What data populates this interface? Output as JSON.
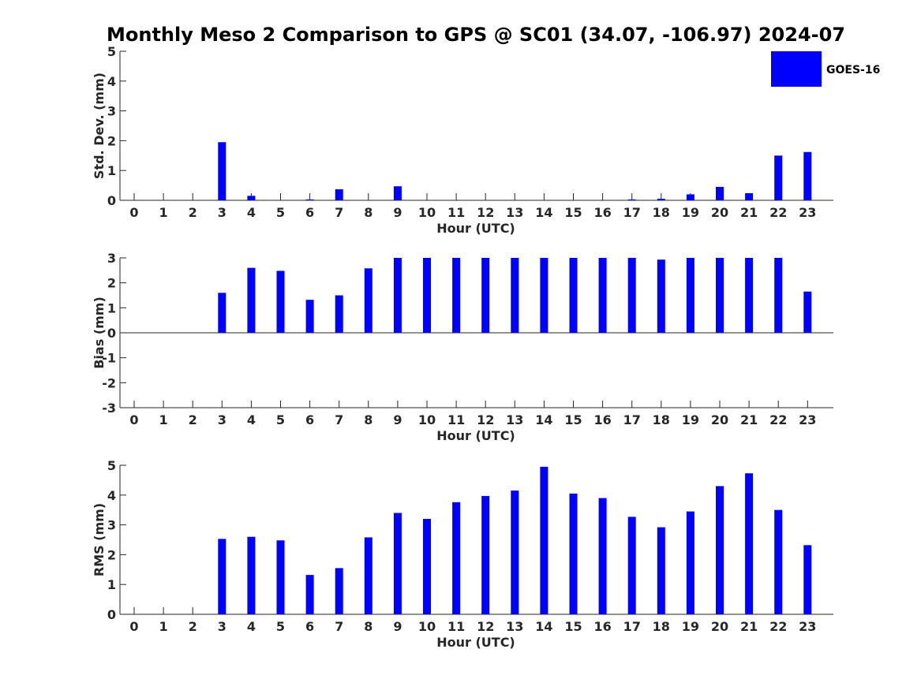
{
  "title": "Monthly Meso 2 Comparison to GPS @ SC01 (34.07, -106.97) 2024-07",
  "bar_color": "#0000ff",
  "legend": {
    "label": "GOES-16",
    "placement": "top-right"
  },
  "chart_data": [
    {
      "type": "bar",
      "panel": "std-dev",
      "ylabel": "Std. Dev. (mm)",
      "xlabel": "Hour (UTC)",
      "categories": [
        "0",
        "1",
        "2",
        "3",
        "4",
        "5",
        "6",
        "7",
        "8",
        "9",
        "10",
        "11",
        "12",
        "13",
        "14",
        "15",
        "16",
        "17",
        "18",
        "19",
        "20",
        "21",
        "22",
        "23"
      ],
      "yticks": [
        0,
        1,
        2,
        3,
        4,
        5
      ],
      "ylim": [
        0,
        5
      ],
      "series": [
        {
          "name": "GOES-16",
          "values": [
            0,
            0,
            0,
            1.95,
            0.15,
            0,
            0.03,
            0.37,
            0,
            0.47,
            0,
            0,
            0,
            0,
            0,
            0,
            0,
            0.03,
            0.05,
            0.2,
            0.45,
            0.24,
            1.5,
            1.62
          ]
        }
      ]
    },
    {
      "type": "bar",
      "panel": "bias",
      "ylabel": "Bias (mm)",
      "xlabel": "Hour (UTC)",
      "categories": [
        "0",
        "1",
        "2",
        "3",
        "4",
        "5",
        "6",
        "7",
        "8",
        "9",
        "10",
        "11",
        "12",
        "13",
        "14",
        "15",
        "16",
        "17",
        "18",
        "19",
        "20",
        "21",
        "22",
        "23"
      ],
      "yticks": [
        -3,
        -2,
        -1,
        0,
        1,
        2,
        3
      ],
      "ylim": [
        -3,
        3
      ],
      "series": [
        {
          "name": "GOES-16",
          "values": [
            0,
            0,
            0,
            1.6,
            2.6,
            2.48,
            1.32,
            1.5,
            2.58,
            3,
            3,
            3,
            3,
            3,
            3,
            3,
            3,
            3,
            2.93,
            3,
            3,
            3,
            3,
            1.65
          ]
        }
      ]
    },
    {
      "type": "bar",
      "panel": "rms",
      "ylabel": "RMS (mm)",
      "xlabel": "Hour (UTC)",
      "categories": [
        "0",
        "1",
        "2",
        "3",
        "4",
        "5",
        "6",
        "7",
        "8",
        "9",
        "10",
        "11",
        "12",
        "13",
        "14",
        "15",
        "16",
        "17",
        "18",
        "19",
        "20",
        "21",
        "22",
        "23"
      ],
      "yticks": [
        0,
        1,
        2,
        3,
        4,
        5
      ],
      "ylim": [
        0,
        5
      ],
      "series": [
        {
          "name": "GOES-16",
          "values": [
            0,
            0,
            0,
            2.53,
            2.6,
            2.48,
            1.32,
            1.55,
            2.58,
            3.4,
            3.2,
            3.76,
            3.97,
            4.15,
            4.95,
            4.05,
            3.9,
            3.27,
            2.92,
            3.45,
            4.3,
            4.73,
            3.5,
            2.32
          ]
        }
      ]
    }
  ]
}
